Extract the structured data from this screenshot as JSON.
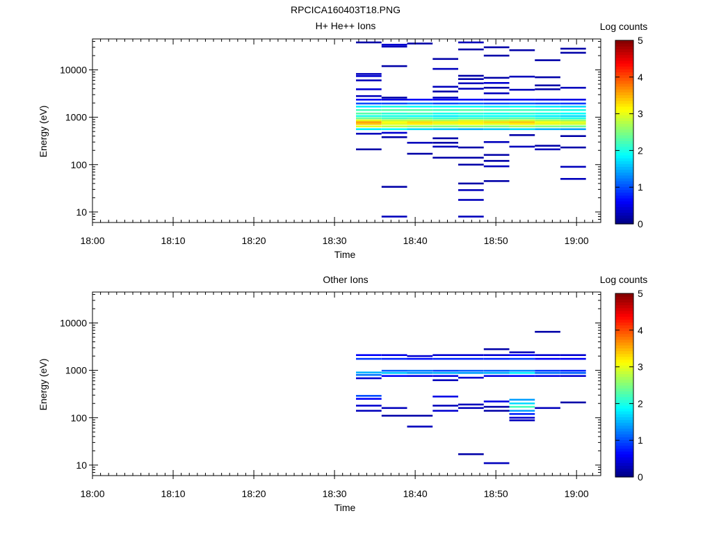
{
  "figure_title": "RPCICA160403T18.PNG",
  "colors": {
    "colormap": [
      "#00007f",
      "#0000ff",
      "#007fff",
      "#00ffff",
      "#7fff7f",
      "#ffff00",
      "#ff7f00",
      "#ff0000",
      "#7f0000"
    ],
    "background": "#ffffff",
    "axis": "#000000"
  },
  "chart_data": [
    {
      "type": "heatmap",
      "title": "H+ He++ Ions",
      "xlabel": "Time",
      "ylabel": "Energy (eV)",
      "y_scale": "log",
      "ylim": [
        6,
        45000
      ],
      "xlim": [
        "18:00",
        "19:03"
      ],
      "x_ticks": [
        "18:00",
        "18:10",
        "18:20",
        "18:30",
        "18:40",
        "18:50",
        "19:00"
      ],
      "y_ticks": [
        "10",
        "100",
        "1000",
        "10000"
      ],
      "colorbar": {
        "label": "Log counts",
        "range": [
          0,
          5
        ],
        "ticks": [
          "0",
          "1",
          "2",
          "3",
          "4",
          "5"
        ]
      },
      "time_bins": [
        "18:32:40",
        "18:35:50",
        "18:39:00",
        "18:42:10",
        "18:45:20",
        "18:48:30",
        "18:51:40",
        "18:54:50",
        "18:58:00",
        "19:01:10"
      ],
      "cells": [
        [
          0,
          560,
          1.8
        ],
        [
          0,
          640,
          3.0
        ],
        [
          0,
          720,
          3.4
        ],
        [
          0,
          790,
          3.6
        ],
        [
          0,
          860,
          3.0
        ],
        [
          0,
          950,
          2.4
        ],
        [
          0,
          1060,
          2.0
        ],
        [
          0,
          1200,
          2.3
        ],
        [
          0,
          1420,
          2.2
        ],
        [
          0,
          1680,
          1.8
        ],
        [
          0,
          1950,
          1.0
        ],
        [
          0,
          2350,
          0.6
        ],
        [
          0,
          2800,
          0.3
        ],
        [
          0,
          3900,
          0.4
        ],
        [
          0,
          6000,
          0.3
        ],
        [
          0,
          7400,
          0.4
        ],
        [
          0,
          8200,
          0.3
        ],
        [
          0,
          38000,
          0.2
        ],
        [
          0,
          450,
          0.3
        ],
        [
          0,
          210,
          0.2
        ],
        [
          1,
          470,
          0.4
        ],
        [
          1,
          560,
          1.9
        ],
        [
          1,
          640,
          2.8
        ],
        [
          1,
          720,
          3.0
        ],
        [
          1,
          790,
          3.1
        ],
        [
          1,
          860,
          2.8
        ],
        [
          1,
          950,
          2.2
        ],
        [
          1,
          1060,
          2.0
        ],
        [
          1,
          1200,
          2.1
        ],
        [
          1,
          1420,
          2.3
        ],
        [
          1,
          1680,
          2.0
        ],
        [
          1,
          1950,
          1.0
        ],
        [
          1,
          2350,
          0.5
        ],
        [
          1,
          2600,
          0.2
        ],
        [
          1,
          12000,
          0.2
        ],
        [
          1,
          34000,
          0.4
        ],
        [
          1,
          31000,
          0.3
        ],
        [
          1,
          380,
          0.2
        ],
        [
          1,
          34,
          0.2
        ],
        [
          1,
          8,
          0.3
        ],
        [
          2,
          560,
          1.7
        ],
        [
          2,
          640,
          2.6
        ],
        [
          2,
          720,
          3.2
        ],
        [
          2,
          790,
          3.3
        ],
        [
          2,
          860,
          2.8
        ],
        [
          2,
          950,
          2.3
        ],
        [
          2,
          1060,
          1.9
        ],
        [
          2,
          1200,
          2.2
        ],
        [
          2,
          1420,
          2.3
        ],
        [
          2,
          1680,
          1.9
        ],
        [
          2,
          1950,
          1.2
        ],
        [
          2,
          2350,
          0.6
        ],
        [
          2,
          290,
          0.3
        ],
        [
          2,
          170,
          0.2
        ],
        [
          2,
          36000,
          0.2
        ],
        [
          3,
          560,
          1.6
        ],
        [
          3,
          640,
          2.5
        ],
        [
          3,
          720,
          3.0
        ],
        [
          3,
          790,
          3.2
        ],
        [
          3,
          860,
          2.7
        ],
        [
          3,
          950,
          2.1
        ],
        [
          3,
          1060,
          1.8
        ],
        [
          3,
          1200,
          2.0
        ],
        [
          3,
          1420,
          2.2
        ],
        [
          3,
          1680,
          1.9
        ],
        [
          3,
          1950,
          1.0
        ],
        [
          3,
          2350,
          0.6
        ],
        [
          3,
          2600,
          0.3
        ],
        [
          3,
          4400,
          0.3
        ],
        [
          3,
          3500,
          0.2
        ],
        [
          3,
          10500,
          0.3
        ],
        [
          3,
          17000,
          0.2
        ],
        [
          3,
          240,
          0.3
        ],
        [
          3,
          290,
          0.2
        ],
        [
          3,
          360,
          0.2
        ],
        [
          3,
          140,
          0.2
        ],
        [
          4,
          560,
          1.5
        ],
        [
          4,
          640,
          2.6
        ],
        [
          4,
          720,
          3.1
        ],
        [
          4,
          790,
          3.2
        ],
        [
          4,
          860,
          2.9
        ],
        [
          4,
          950,
          2.2
        ],
        [
          4,
          1060,
          1.9
        ],
        [
          4,
          1200,
          2.1
        ],
        [
          4,
          1420,
          2.3
        ],
        [
          4,
          1680,
          1.9
        ],
        [
          4,
          1950,
          1.1
        ],
        [
          4,
          2350,
          0.6
        ],
        [
          4,
          4000,
          0.3
        ],
        [
          4,
          5200,
          0.3
        ],
        [
          4,
          6400,
          0.2
        ],
        [
          4,
          7500,
          0.2
        ],
        [
          4,
          27000,
          0.2
        ],
        [
          4,
          38000,
          0.3
        ],
        [
          4,
          230,
          0.2
        ],
        [
          4,
          140,
          0.2
        ],
        [
          4,
          100,
          0.2
        ],
        [
          4,
          40,
          0.2
        ],
        [
          4,
          29,
          0.3
        ],
        [
          4,
          18,
          0.3
        ],
        [
          4,
          8,
          0.3
        ],
        [
          5,
          560,
          1.6
        ],
        [
          5,
          640,
          2.5
        ],
        [
          5,
          720,
          3.0
        ],
        [
          5,
          790,
          3.3
        ],
        [
          5,
          860,
          2.8
        ],
        [
          5,
          950,
          2.2
        ],
        [
          5,
          1060,
          1.9
        ],
        [
          5,
          1200,
          2.0
        ],
        [
          5,
          1420,
          2.2
        ],
        [
          5,
          1680,
          1.8
        ],
        [
          5,
          1950,
          1.0
        ],
        [
          5,
          2350,
          0.5
        ],
        [
          5,
          3200,
          0.3
        ],
        [
          5,
          4200,
          0.2
        ],
        [
          5,
          5300,
          0.4
        ],
        [
          5,
          6800,
          0.2
        ],
        [
          5,
          30000,
          0.2
        ],
        [
          5,
          20000,
          0.2
        ],
        [
          5,
          300,
          0.3
        ],
        [
          5,
          160,
          0.2
        ],
        [
          5,
          120,
          0.2
        ],
        [
          5,
          92,
          0.3
        ],
        [
          5,
          45,
          0.2
        ],
        [
          6,
          560,
          1.7
        ],
        [
          6,
          640,
          2.7
        ],
        [
          6,
          720,
          3.2
        ],
        [
          6,
          790,
          3.4
        ],
        [
          6,
          860,
          2.9
        ],
        [
          6,
          950,
          2.3
        ],
        [
          6,
          1060,
          1.9
        ],
        [
          6,
          1200,
          2.1
        ],
        [
          6,
          1420,
          2.2
        ],
        [
          6,
          1680,
          1.9
        ],
        [
          6,
          1950,
          1.1
        ],
        [
          6,
          2350,
          0.6
        ],
        [
          6,
          3800,
          0.3
        ],
        [
          6,
          7200,
          0.3
        ],
        [
          6,
          26000,
          0.2
        ],
        [
          6,
          240,
          0.3
        ],
        [
          6,
          420,
          0.2
        ],
        [
          7,
          560,
          1.5
        ],
        [
          7,
          640,
          2.5
        ],
        [
          7,
          720,
          3.0
        ],
        [
          7,
          790,
          3.1
        ],
        [
          7,
          860,
          2.7
        ],
        [
          7,
          950,
          2.1
        ],
        [
          7,
          1060,
          1.8
        ],
        [
          7,
          1200,
          2.0
        ],
        [
          7,
          1420,
          2.1
        ],
        [
          7,
          1680,
          1.8
        ],
        [
          7,
          1950,
          1.0
        ],
        [
          7,
          2350,
          0.5
        ],
        [
          7,
          3900,
          0.2
        ],
        [
          7,
          4700,
          0.2
        ],
        [
          7,
          7000,
          0.2
        ],
        [
          7,
          16000,
          0.2
        ],
        [
          7,
          250,
          0.2
        ],
        [
          7,
          210,
          0.3
        ],
        [
          8,
          560,
          1.4
        ],
        [
          8,
          640,
          2.4
        ],
        [
          8,
          720,
          2.9
        ],
        [
          8,
          790,
          3.0
        ],
        [
          8,
          860,
          2.6
        ],
        [
          8,
          950,
          2.0
        ],
        [
          8,
          1060,
          1.7
        ],
        [
          8,
          1200,
          1.9
        ],
        [
          8,
          1420,
          2.0
        ],
        [
          8,
          1680,
          1.7
        ],
        [
          8,
          1950,
          0.9
        ],
        [
          8,
          2350,
          0.5
        ],
        [
          8,
          4200,
          0.3
        ],
        [
          8,
          28000,
          0.2
        ],
        [
          8,
          23000,
          0.2
        ],
        [
          8,
          400,
          0.2
        ],
        [
          8,
          230,
          0.2
        ],
        [
          8,
          90,
          0.3
        ],
        [
          8,
          50,
          0.3
        ]
      ]
    },
    {
      "type": "heatmap",
      "title": "Other Ions",
      "xlabel": "Time",
      "ylabel": "Energy (eV)",
      "y_scale": "log",
      "ylim": [
        6,
        45000
      ],
      "xlim": [
        "18:00",
        "19:03"
      ],
      "x_ticks": [
        "18:00",
        "18:10",
        "18:20",
        "18:30",
        "18:40",
        "18:50",
        "19:00"
      ],
      "y_ticks": [
        "10",
        "100",
        "1000",
        "10000"
      ],
      "colorbar": {
        "label": "Log counts",
        "range": [
          0,
          5
        ],
        "ticks": [
          "0",
          "1",
          "2",
          "3",
          "4",
          "5"
        ]
      },
      "time_bins": [
        "18:32:40",
        "18:35:50",
        "18:39:00",
        "18:42:10",
        "18:45:20",
        "18:48:30",
        "18:51:40",
        "18:54:50",
        "18:58:00",
        "19:01:10"
      ],
      "cells": [
        [
          0,
          680,
          0.4
        ],
        [
          0,
          800,
          1.2
        ],
        [
          0,
          900,
          1.5
        ],
        [
          0,
          1750,
          0.9
        ],
        [
          0,
          2100,
          0.6
        ],
        [
          0,
          290,
          1.0
        ],
        [
          0,
          250,
          0.6
        ],
        [
          0,
          180,
          0.4
        ],
        [
          0,
          140,
          0.3
        ],
        [
          1,
          760,
          0.6
        ],
        [
          1,
          880,
          1.6
        ],
        [
          1,
          980,
          1.1
        ],
        [
          1,
          1750,
          0.8
        ],
        [
          1,
          2100,
          0.5
        ],
        [
          1,
          160,
          0.3
        ],
        [
          1,
          110,
          0.2
        ],
        [
          2,
          760,
          0.5
        ],
        [
          2,
          880,
          1.4
        ],
        [
          2,
          980,
          1.2
        ],
        [
          2,
          1750,
          0.7
        ],
        [
          2,
          2000,
          0.4
        ],
        [
          2,
          110,
          0.2
        ],
        [
          2,
          65,
          0.3
        ],
        [
          3,
          620,
          0.3
        ],
        [
          3,
          760,
          0.5
        ],
        [
          3,
          880,
          1.5
        ],
        [
          3,
          980,
          1.0
        ],
        [
          3,
          1750,
          0.8
        ],
        [
          3,
          2100,
          0.4
        ],
        [
          3,
          280,
          0.5
        ],
        [
          3,
          140,
          0.4
        ],
        [
          3,
          180,
          0.3
        ],
        [
          4,
          700,
          0.4
        ],
        [
          4,
          880,
          1.4
        ],
        [
          4,
          980,
          1.1
        ],
        [
          4,
          1750,
          0.8
        ],
        [
          4,
          2100,
          0.4
        ],
        [
          4,
          190,
          0.3
        ],
        [
          4,
          160,
          0.3
        ],
        [
          4,
          17,
          0.2
        ],
        [
          5,
          760,
          0.5
        ],
        [
          5,
          880,
          1.5
        ],
        [
          5,
          980,
          1.1
        ],
        [
          5,
          1750,
          0.8
        ],
        [
          5,
          2100,
          0.4
        ],
        [
          5,
          2800,
          0.2
        ],
        [
          5,
          220,
          0.5
        ],
        [
          5,
          170,
          0.2
        ],
        [
          5,
          140,
          0.2
        ],
        [
          5,
          11,
          0.3
        ],
        [
          6,
          760,
          0.6
        ],
        [
          6,
          880,
          1.8
        ],
        [
          6,
          980,
          1.3
        ],
        [
          6,
          1750,
          0.9
        ],
        [
          6,
          2100,
          0.6
        ],
        [
          6,
          2400,
          0.3
        ],
        [
          6,
          240,
          1.4
        ],
        [
          6,
          200,
          1.7
        ],
        [
          6,
          170,
          2.2
        ],
        [
          6,
          140,
          1.4
        ],
        [
          6,
          120,
          0.8
        ],
        [
          6,
          100,
          0.4
        ],
        [
          6,
          88,
          0.3
        ],
        [
          7,
          760,
          0.5
        ],
        [
          7,
          880,
          1.2
        ],
        [
          7,
          980,
          0.9
        ],
        [
          7,
          1750,
          0.6
        ],
        [
          7,
          2100,
          0.4
        ],
        [
          7,
          6500,
          0.2
        ],
        [
          7,
          160,
          0.3
        ],
        [
          8,
          760,
          0.4
        ],
        [
          8,
          880,
          1.1
        ],
        [
          8,
          980,
          0.8
        ],
        [
          8,
          1750,
          0.6
        ],
        [
          8,
          2100,
          0.4
        ],
        [
          8,
          210,
          0.2
        ]
      ]
    }
  ]
}
